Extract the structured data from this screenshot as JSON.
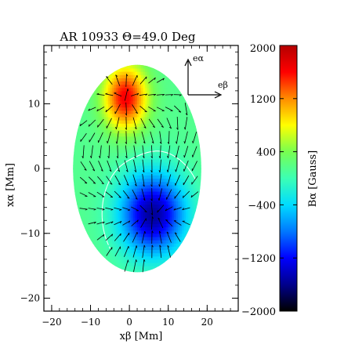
{
  "chart_data": {
    "type": "heatmap",
    "title": "AR 10933 Θ=49.0 Deg",
    "xlabel": "xβ [Mm]",
    "ylabel": "xα [Mm]",
    "xlim": [
      -22,
      28
    ],
    "ylim": [
      -22,
      19
    ],
    "x_ticks": [
      "−20",
      "−10",
      "0",
      "10",
      "20"
    ],
    "y_ticks": [
      "−20",
      "−10",
      "0",
      "10"
    ],
    "ellipse": {
      "center": [
        2,
        0
      ],
      "semi_axis_x": 16.5,
      "semi_axis_y": 16
    },
    "poles": [
      {
        "name": "positive",
        "center": [
          -1,
          11
        ],
        "peak": 1500
      },
      {
        "name": "negative",
        "center": [
          6,
          -7
        ],
        "peak": -1700
      }
    ],
    "basis": {
      "e_alpha": "eα",
      "e_beta": "eβ"
    },
    "colorbar": {
      "label": "Bα [Gauss]",
      "range": [
        -2000,
        2000
      ],
      "ticks": [
        "2000",
        "1200",
        "400",
        "−400",
        "−1200",
        "−2000"
      ],
      "colormap": [
        "#000000",
        "#00008c",
        "#0000ff",
        "#0078ff",
        "#00dcff",
        "#3cffb4",
        "#78ff50",
        "#ffff00",
        "#ff8c00",
        "#ff0000",
        "#b40000"
      ]
    },
    "grid": false,
    "legend": "none"
  }
}
